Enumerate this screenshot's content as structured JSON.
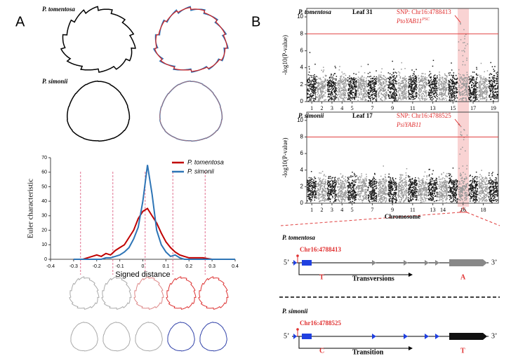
{
  "panels": {
    "a": "A",
    "b": "B"
  },
  "panel_a": {
    "species_1": "P. tomentosa",
    "species_2": "P. simonii"
  },
  "chart_data": {
    "type": "line",
    "xlabel": "Signed distance",
    "ylabel": "Euler characteristic",
    "xlim": [
      -0.4,
      0.4
    ],
    "xticks": [
      -0.4,
      -0.3,
      -0.2,
      -0.1,
      0,
      0.1,
      0.2,
      0.3,
      0.4
    ],
    "ylim": [
      0,
      70
    ],
    "yticks": [
      0,
      10,
      20,
      30,
      40,
      50,
      60,
      70
    ],
    "x": [
      -0.3,
      -0.26,
      -0.24,
      -0.22,
      -0.2,
      -0.18,
      -0.16,
      -0.14,
      -0.12,
      -0.1,
      -0.08,
      -0.06,
      -0.04,
      -0.02,
      0,
      0.02,
      0.04,
      0.06,
      0.08,
      0.1,
      0.12,
      0.14,
      0.16,
      0.18,
      0.2,
      0.22,
      0.24,
      0.26,
      0.28,
      0.3,
      0.4
    ],
    "series": [
      {
        "name": "P. tomentosa",
        "color": "#c00000",
        "values": [
          0,
          0,
          1,
          2,
          3,
          2,
          4,
          3,
          6,
          8,
          10,
          15,
          20,
          28,
          33,
          35,
          30,
          25,
          18,
          12,
          8,
          5,
          3,
          2,
          1,
          1,
          1,
          1,
          0.5,
          0,
          0
        ]
      },
      {
        "name": "P. simonii",
        "color": "#2e75b6",
        "values": [
          0,
          0,
          0,
          0,
          0,
          0,
          1,
          1,
          2,
          3,
          5,
          8,
          14,
          22,
          40,
          65,
          45,
          20,
          10,
          5,
          2,
          3,
          1,
          0,
          0,
          0,
          0,
          0,
          0,
          0,
          0
        ]
      }
    ],
    "reference_lines": [
      -0.27,
      -0.13,
      0.01,
      0.13,
      0.27
    ],
    "reference_color": "#e07090",
    "legend": "upper right"
  },
  "manhattan": [
    {
      "species": "P. tomentosa",
      "leaf": "Leaf 31",
      "snp": "SNP: Chr16:4788413",
      "gene": "PtoYAB11",
      "gene_sup": "PSC",
      "ylabel": "-log10(P-value)",
      "ylim": [
        0,
        11
      ],
      "yticks": [
        0,
        2,
        4,
        6,
        8,
        10
      ],
      "threshold": 8,
      "xticks": [
        1,
        2,
        3,
        4,
        5,
        7,
        9,
        11,
        13,
        15,
        17,
        19
      ]
    },
    {
      "species": "P. simonii",
      "leaf": "Leaf 17",
      "snp": "SNP: Chr16:4788525",
      "gene": "PsiYAB11",
      "ylabel": "-log10(P-value)",
      "ylim": [
        0,
        11
      ],
      "yticks": [
        0,
        2,
        4,
        6,
        8,
        10
      ],
      "threshold": 8,
      "xticks": [
        1,
        2,
        3,
        4,
        5,
        7,
        9,
        11,
        13,
        14,
        16,
        18
      ],
      "xlabel": "Chromosome"
    }
  ],
  "genes": [
    {
      "species": "P. tomentosa",
      "snp": "Chr16:4788413",
      "five": "5’",
      "three": "3’",
      "allele_1": "T",
      "change": "Transversions",
      "allele_2": "A"
    },
    {
      "species": "P. simonii",
      "snp": "Chr16:4788525",
      "five": "5’",
      "three": "3’",
      "allele_1": "C",
      "change": "Transition",
      "allele_2": "T"
    }
  ]
}
